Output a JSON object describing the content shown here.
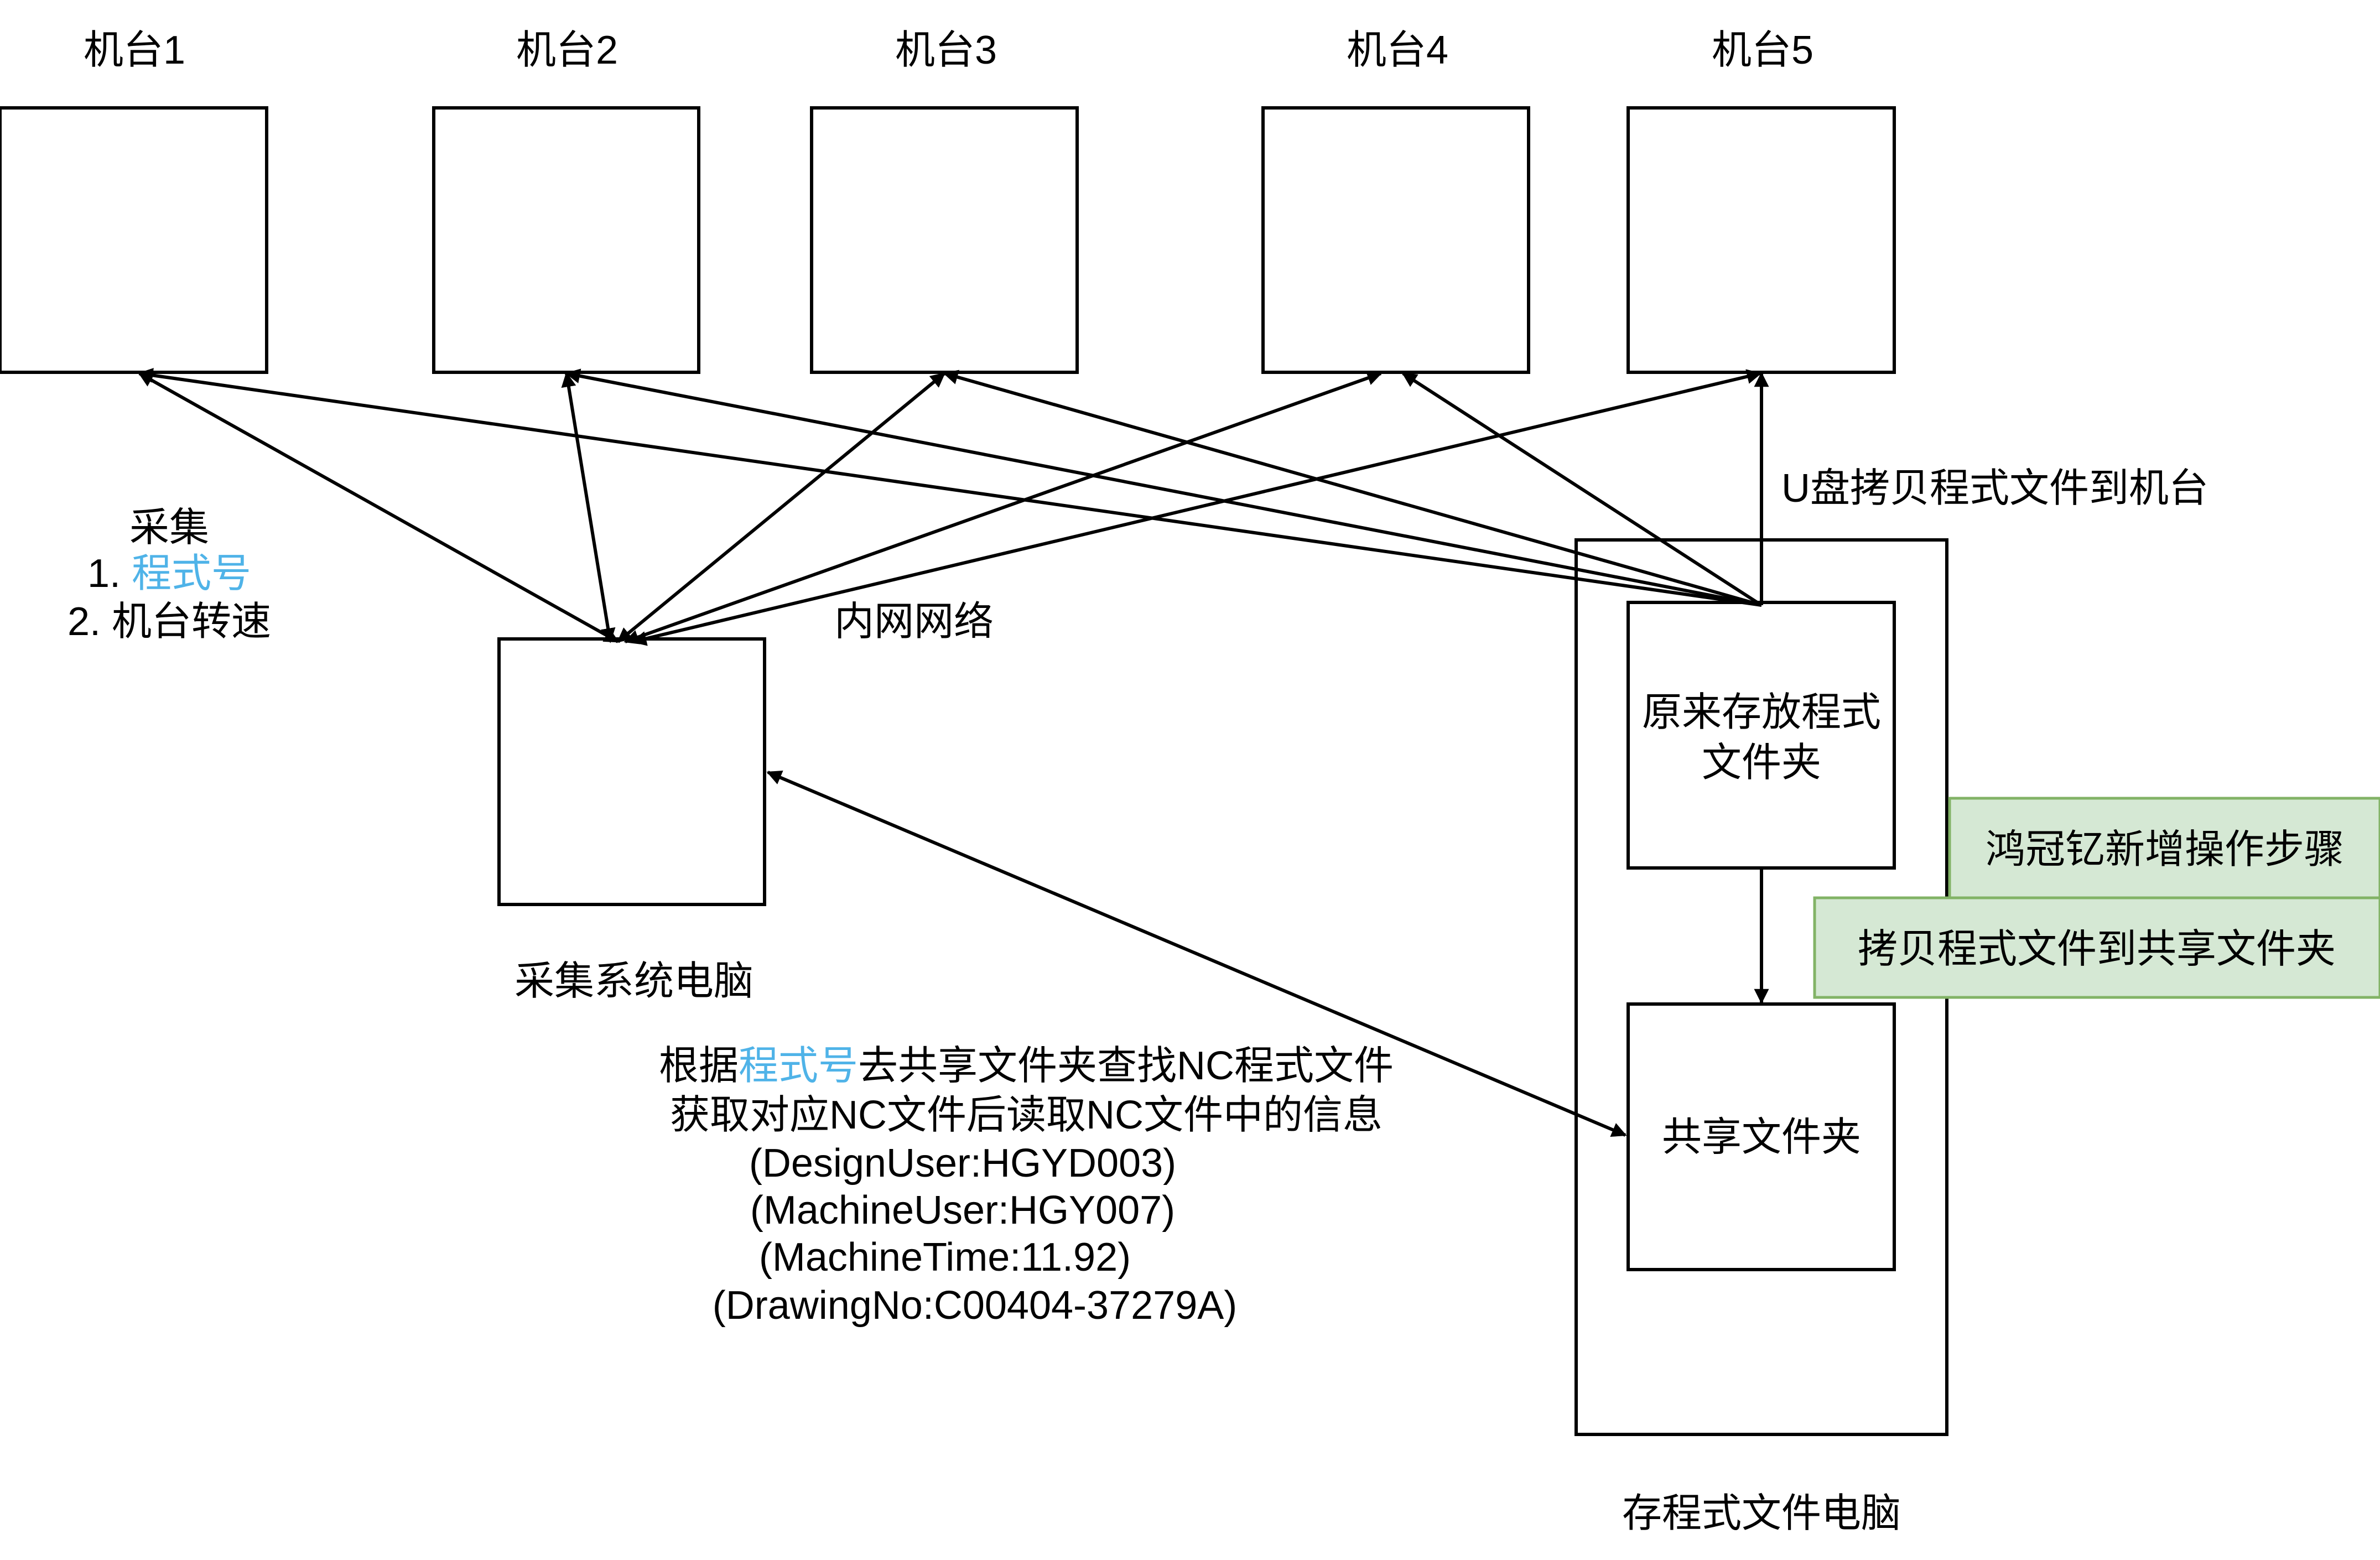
{
  "machines": [
    {
      "label": "机台1"
    },
    {
      "label": "机台2"
    },
    {
      "label": "机台3"
    },
    {
      "label": "机台4"
    },
    {
      "label": "机台5"
    }
  ],
  "collect": {
    "title": "采集",
    "item1_prefix": "1. ",
    "item1_highlight": "程式号",
    "item2": "2. 机台转速"
  },
  "network_label": "内网网络",
  "collector_label": "采集系统电脑",
  "usb_label": "U盘拷贝程式文件到机台",
  "storage": {
    "pc_label": "存程式文件电脑",
    "original_folder_line1": "原来存放程式",
    "original_folder_line2": "文件夹",
    "shared_folder": "共享文件夹"
  },
  "notes": {
    "added_steps": "鸿冠钇新增操作步骤",
    "copy_step": "拷贝程式文件到共享文件夹"
  },
  "lookup": {
    "line1_prefix": "根据",
    "line1_highlight": "程式号",
    "line1_suffix": "去共享文件夹查找NC程式文件",
    "line2": "获取对应NC文件后读取NC文件中的信息",
    "fields": [
      "(DesignUser:HGYD003)",
      "(MachineUser:HGY007)",
      "(MachineTime:11.92)",
      "(DrawingNo:C00404-37279A)"
    ]
  },
  "colors": {
    "highlight": "#4fb3e8",
    "note_fill": "#d5e8d4",
    "note_stroke": "#82b366"
  }
}
